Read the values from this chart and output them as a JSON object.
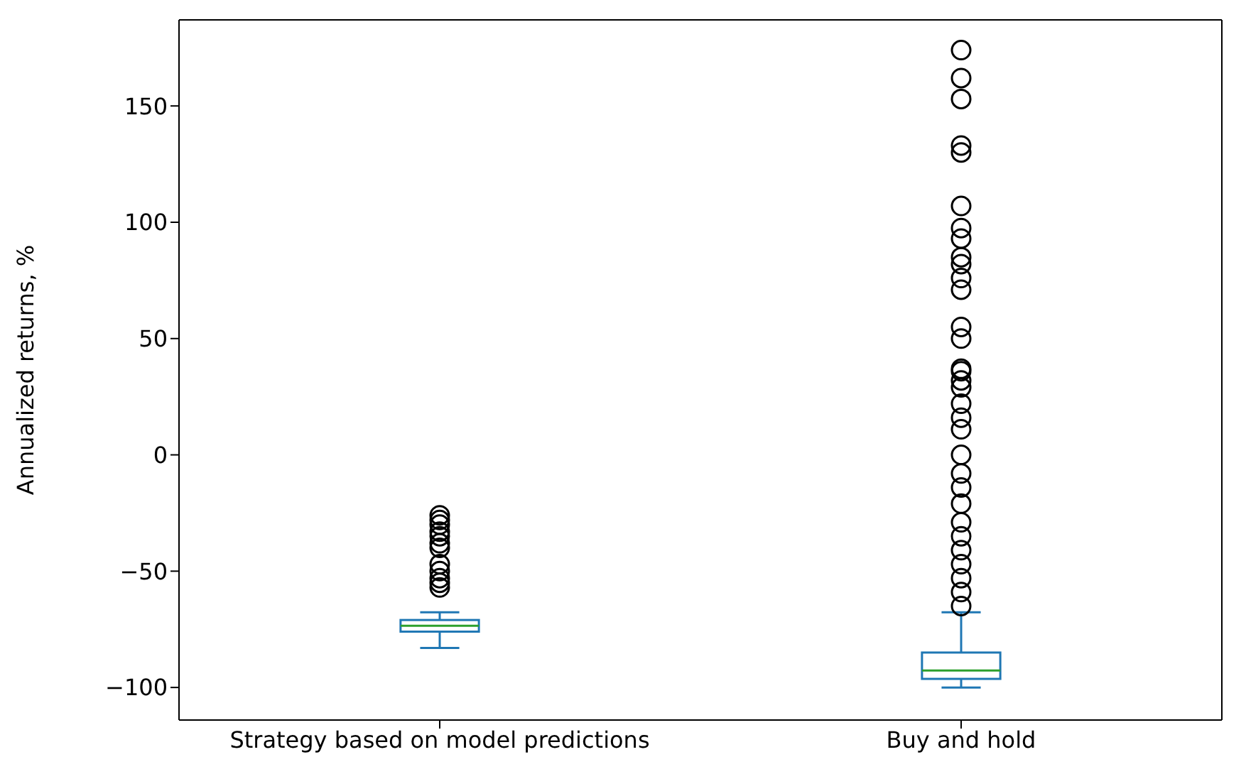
{
  "chart_data": {
    "type": "box",
    "ylabel": "Annualized returns, %",
    "categories": [
      "Strategy based on model predictions",
      "Buy and hold"
    ],
    "color": "#1f77b4",
    "ylim": [
      -114,
      187
    ],
    "yticks": [
      -100,
      -50,
      0,
      50,
      100,
      150
    ],
    "marker": "circle",
    "boxes": [
      {
        "low": -83,
        "q1": -76,
        "median": -73.5,
        "q3": -71,
        "high": -67.7,
        "outliers": [
          -26,
          -28,
          -30,
          -33,
          -35,
          -38,
          -40,
          -47,
          -50,
          -53,
          -55,
          -57
        ]
      },
      {
        "low": -100,
        "q1": -96.3,
        "median": -92.7,
        "q3": -85,
        "high": -67.7,
        "outliers": [
          174,
          162,
          153,
          133,
          130,
          107,
          97.5,
          93,
          85,
          82,
          76,
          71,
          55,
          50,
          37,
          36,
          32,
          29,
          22,
          16,
          11,
          0,
          -8,
          -14,
          -21,
          -29,
          -35,
          -41,
          -47,
          -53,
          -59,
          -65
        ]
      }
    ]
  }
}
